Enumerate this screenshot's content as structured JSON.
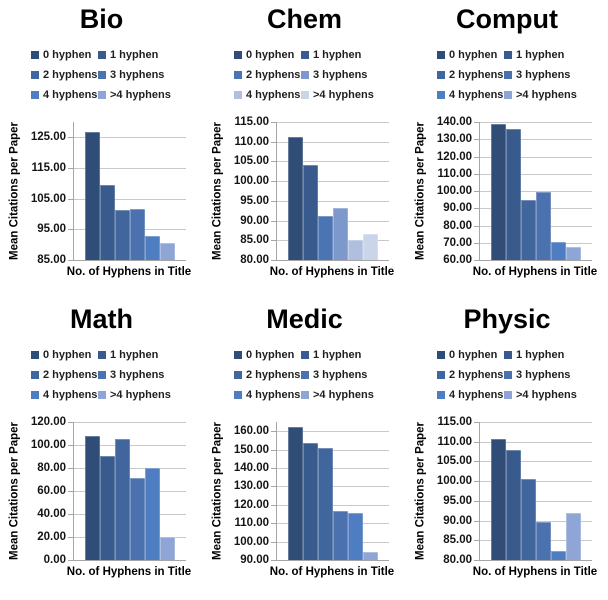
{
  "shared": {
    "y_axis_title": "Mean Citations per Paper",
    "x_axis_title": "No. of Hyphens in Title",
    "legend_labels": [
      "0 hyphen",
      "1 hyphen",
      "2 hyphens",
      "3 hyphens",
      "4 hyphens",
      ">4 hyphens"
    ],
    "palettes": {
      "default": [
        "#2F4D76",
        "#385A8C",
        "#41669D",
        "#4B72AE",
        "#4F7DC2",
        "#8EA5D5"
      ],
      "chem": [
        "#2F4D76",
        "#385A8C",
        "#4A74B2",
        "#7D98CB",
        "#AFBFDD",
        "#CAD5EA"
      ]
    },
    "axis_color": "#A6A6A6",
    "gridline_color": "#C9C9C9",
    "background": "#FFFFFF",
    "legend_position": "top-left",
    "grid": true
  },
  "chart_data": [
    {
      "type": "bar",
      "title": "Bio",
      "palette": "default",
      "categories": [
        "0 hyphen",
        "1 hyphen",
        "2 hyphens",
        "3 hyphens",
        "4 hyphens",
        ">4 hyphens"
      ],
      "values": [
        126.8,
        109.5,
        101.3,
        101.8,
        92.9,
        90.4
      ],
      "xlabel": "No. of Hyphens in Title",
      "ylabel": "Mean Citations per Paper",
      "ylim": [
        85,
        130
      ],
      "yticks": [
        85,
        95,
        105,
        115,
        125
      ],
      "ytick_labels": [
        "85.00",
        "95.00",
        "105.00",
        "115.00",
        "125.00"
      ]
    },
    {
      "type": "bar",
      "title": "Chem",
      "palette": "chem",
      "categories": [
        "0 hyphen",
        "1 hyphen",
        "2 hyphens",
        "3 hyphens",
        "4 hyphens",
        ">4 hyphens"
      ],
      "values": [
        111.2,
        104.0,
        91.1,
        93.1,
        85.2,
        86.5
      ],
      "xlabel": "No. of Hyphens in Title",
      "ylabel": "Mean Citations per Paper",
      "ylim": [
        80,
        115
      ],
      "yticks": [
        80,
        85,
        90,
        95,
        100,
        105,
        110,
        115
      ],
      "ytick_labels": [
        "80.00",
        "85.00",
        "90.00",
        "95.00",
        "100.00",
        "105.00",
        "110.00",
        "115.00"
      ]
    },
    {
      "type": "bar",
      "title": "Comput",
      "palette": "default",
      "categories": [
        "0 hyphen",
        "1 hyphen",
        "2 hyphens",
        "3 hyphens",
        "4 hyphens",
        ">4 hyphens"
      ],
      "values": [
        138.9,
        135.8,
        94.6,
        99.5,
        70.2,
        67.4
      ],
      "xlabel": "No. of Hyphens in Title",
      "ylabel": "Mean Citations per Paper",
      "ylim": [
        60,
        140
      ],
      "yticks": [
        60,
        70,
        80,
        90,
        100,
        110,
        120,
        130,
        140
      ],
      "ytick_labels": [
        "60.00",
        "70.00",
        "80.00",
        "90.00",
        "100.00",
        "110.00",
        "120.00",
        "130.00",
        "140.00"
      ]
    },
    {
      "type": "bar",
      "title": "Math",
      "palette": "default",
      "categories": [
        "0 hyphen",
        "1 hyphen",
        "2 hyphens",
        "3 hyphens",
        "4 hyphens",
        ">4 hyphens"
      ],
      "values": [
        108.0,
        90.2,
        105.5,
        71.1,
        80.0,
        20.0
      ],
      "xlabel": "No. of Hyphens in Title",
      "ylabel": "Mean Citations per Paper",
      "ylim": [
        0,
        120
      ],
      "yticks": [
        0,
        20,
        40,
        60,
        80,
        100,
        120
      ],
      "ytick_labels": [
        "0.00",
        "20.00",
        "40.00",
        "60.00",
        "80.00",
        "100.00",
        "120.00"
      ]
    },
    {
      "type": "bar",
      "title": "Medic",
      "palette": "default",
      "categories": [
        "0 hyphen",
        "1 hyphen",
        "2 hyphens",
        "3 hyphens",
        "4 hyphens",
        ">4 hyphens"
      ],
      "values": [
        162.3,
        153.6,
        150.9,
        116.6,
        115.4,
        94.2
      ],
      "xlabel": "No. of Hyphens in Title",
      "ylabel": "Mean Citations per Paper",
      "ylim": [
        90,
        165
      ],
      "yticks": [
        90,
        100,
        110,
        120,
        130,
        140,
        150,
        160
      ],
      "ytick_labels": [
        "90.00",
        "100.00",
        "110.00",
        "120.00",
        "130.00",
        "140.00",
        "150.00",
        "160.00"
      ]
    },
    {
      "type": "bar",
      "title": "Physic",
      "palette": "default",
      "categories": [
        "0 hyphen",
        "1 hyphen",
        "2 hyphens",
        "3 hyphens",
        "4 hyphens",
        ">4 hyphens"
      ],
      "values": [
        110.6,
        107.9,
        100.5,
        89.6,
        82.4,
        91.9
      ],
      "xlabel": "No. of Hyphens in Title",
      "ylabel": "Mean Citations per Paper",
      "ylim": [
        80,
        115
      ],
      "yticks": [
        80,
        85,
        90,
        95,
        100,
        105,
        110,
        115
      ],
      "ytick_labels": [
        "80.00",
        "85.00",
        "90.00",
        "95.00",
        "100.00",
        "105.00",
        "110.00",
        "115.00"
      ]
    }
  ]
}
